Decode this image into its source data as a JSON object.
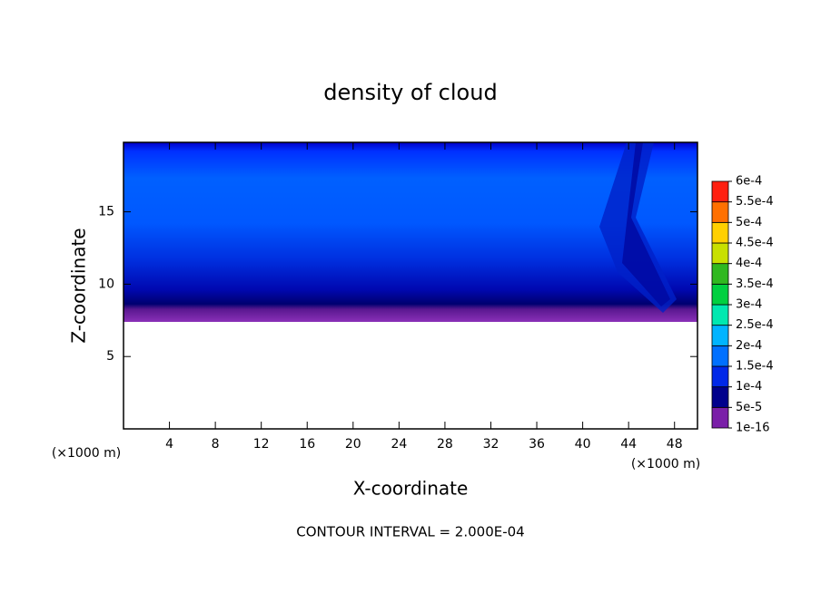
{
  "chart_data": {
    "type": "contour",
    "title": "density of cloud",
    "xlabel": "X-coordinate",
    "ylabel": "Z-coordinate",
    "x_unit": "(×1000 m)",
    "annotation": "CONTOUR INTERVAL = 2.000E-04",
    "xlim": [
      0,
      50
    ],
    "xticks": [
      4,
      8,
      12,
      16,
      20,
      24,
      28,
      32,
      36,
      40,
      44,
      48
    ],
    "ylim": [
      0,
      19.8
    ],
    "yticks": [
      5,
      10,
      15
    ],
    "colorbar": {
      "ticks": [
        {
          "value": 1e-16,
          "label": "1e-16"
        },
        {
          "value": 5e-05,
          "label": "5e-5"
        },
        {
          "value": 0.0001,
          "label": "1e-4"
        },
        {
          "value": 0.00015,
          "label": "1.5e-4"
        },
        {
          "value": 0.0002,
          "label": "2e-4"
        },
        {
          "value": 0.00025,
          "label": "2.5e-4"
        },
        {
          "value": 0.0003,
          "label": "3e-4"
        },
        {
          "value": 0.00035,
          "label": "3.5e-4"
        },
        {
          "value": 0.0004,
          "label": "4e-4"
        },
        {
          "value": 0.00045,
          "label": "4.5e-4"
        },
        {
          "value": 0.0005,
          "label": "5e-4"
        },
        {
          "value": 0.00055,
          "label": "5.5e-4"
        },
        {
          "value": 0.0006,
          "label": "6e-4"
        }
      ],
      "colors": [
        "#7a1fa8",
        "#00008c",
        "#0028e8",
        "#0070ff",
        "#00b4ff",
        "#00e8b0",
        "#00d040",
        "#30b820",
        "#c8e000",
        "#ffd000",
        "#ff7000",
        "#ff2010"
      ]
    }
  }
}
